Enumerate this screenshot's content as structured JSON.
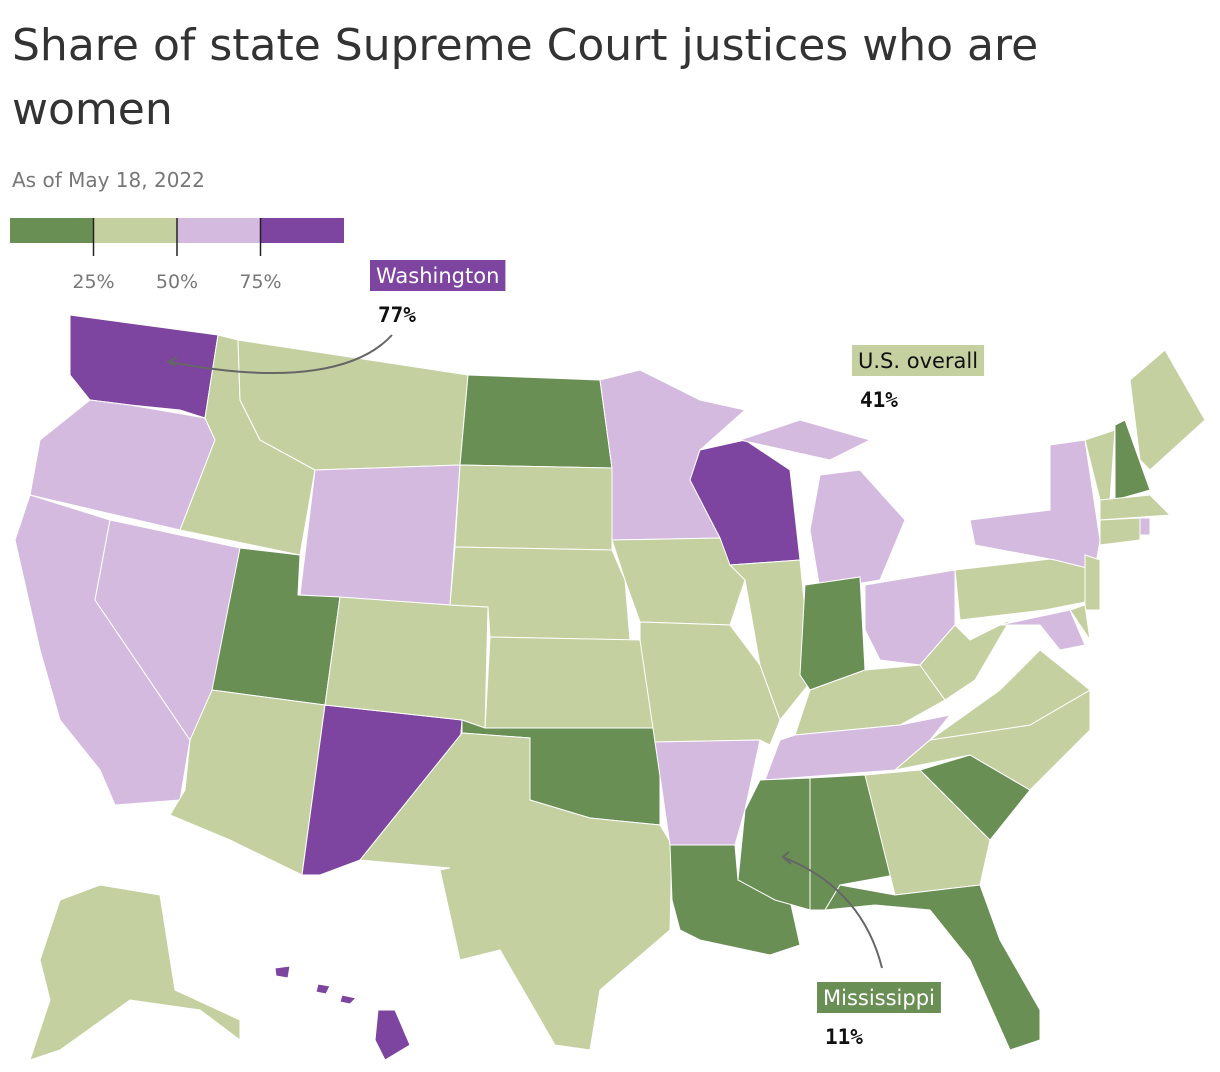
{
  "title": "Share of state Supreme Court justices who are women",
  "subtitle": "As of May 18, 2022",
  "legend": {
    "colors": [
      "#6a8f55",
      "#c5d0a0",
      "#d5bae0",
      "#7d44a0"
    ],
    "range": [
      0,
      100
    ],
    "ticks": [
      {
        "value": 25,
        "label": "25%"
      },
      {
        "value": 50,
        "label": "50%"
      },
      {
        "value": 75,
        "label": "75%"
      }
    ]
  },
  "annotations": [
    {
      "label": "Washington",
      "value": 77,
      "value_label": "77%"
    },
    {
      "label": "U.S. overall",
      "value": 41,
      "value_label": "41%"
    },
    {
      "label": "Mississippi",
      "value": 11,
      "value_label": "11%"
    }
  ]
}
